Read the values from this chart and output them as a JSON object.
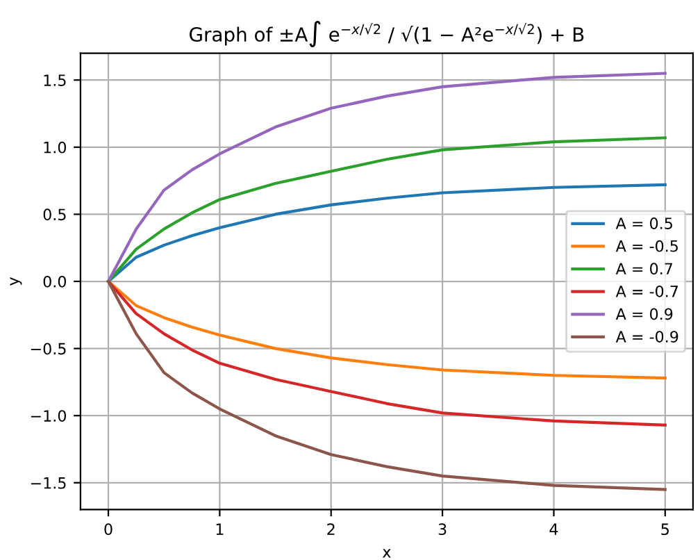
{
  "chart_data": {
    "type": "line",
    "title": "Graph of ±A∫ e$^{−x/√2}$ / √(1 − A²e$^{−x/√2}$) + B",
    "xlabel": "x",
    "ylabel": "y",
    "x": [
      0,
      0.25,
      0.5,
      0.75,
      1,
      1.5,
      2,
      2.5,
      3,
      4,
      5
    ],
    "series": [
      {
        "name": "A = 0.5",
        "color": "#1f77b4",
        "values": [
          0,
          0.18,
          0.27,
          0.34,
          0.4,
          0.5,
          0.57,
          0.62,
          0.66,
          0.7,
          0.72
        ]
      },
      {
        "name": "A = -0.5",
        "color": "#ff7f0e",
        "values": [
          0,
          -0.18,
          -0.27,
          -0.34,
          -0.4,
          -0.5,
          -0.57,
          -0.62,
          -0.66,
          -0.7,
          -0.72
        ]
      },
      {
        "name": "A = 0.7",
        "color": "#2ca02c",
        "values": [
          0,
          0.24,
          0.39,
          0.51,
          0.61,
          0.73,
          0.82,
          0.91,
          0.98,
          1.04,
          1.07
        ]
      },
      {
        "name": "A = -0.7",
        "color": "#d62728",
        "values": [
          0,
          -0.24,
          -0.39,
          -0.51,
          -0.61,
          -0.73,
          -0.82,
          -0.91,
          -0.98,
          -1.04,
          -1.07
        ]
      },
      {
        "name": "A = 0.9",
        "color": "#9467bd",
        "values": [
          0,
          0.39,
          0.68,
          0.83,
          0.95,
          1.15,
          1.29,
          1.38,
          1.45,
          1.52,
          1.55
        ]
      },
      {
        "name": "A = -0.9",
        "color": "#8c564b",
        "values": [
          0,
          -0.39,
          -0.68,
          -0.83,
          -0.95,
          -1.15,
          -1.29,
          -1.38,
          -1.45,
          -1.52,
          -1.55
        ]
      }
    ],
    "xlim": [
      -0.25,
      5.25
    ],
    "ylim": [
      -1.7,
      1.7
    ],
    "xticks": [
      0,
      1,
      2,
      3,
      4,
      5
    ],
    "yticks": [
      {
        "value": -1.5,
        "label": "−1.5"
      },
      {
        "value": -1,
        "label": "−1.0"
      },
      {
        "value": -0.5,
        "label": "−0.5"
      },
      {
        "value": 0,
        "label": "0.0"
      },
      0.5,
      {
        "value": 1,
        "label": "1.0"
      },
      1.5
    ],
    "grid": true,
    "legend": "right",
    "line_style": "solid",
    "marker": "none"
  }
}
